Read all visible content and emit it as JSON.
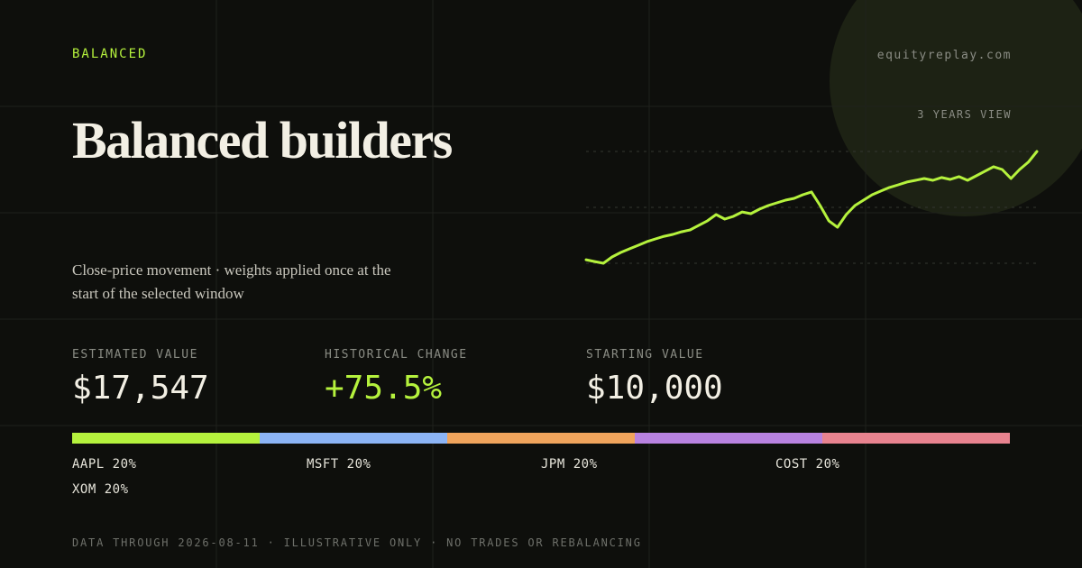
{
  "header": {
    "tag": "BALANCED",
    "site": "equityreplay.com",
    "view": "3 YEARS VIEW"
  },
  "title": "Balanced builders",
  "subtitle": "Close-price movement · weights applied once at the start of the selected window",
  "stats": [
    {
      "label": "ESTIMATED VALUE",
      "value": "$17,547"
    },
    {
      "label": "HISTORICAL CHANGE",
      "value": "+75.5%"
    },
    {
      "label": "STARTING VALUE",
      "value": "$10,000"
    }
  ],
  "sparkline": {
    "color": "#b5f23d",
    "values": [
      10120,
      10000,
      9880,
      10310,
      10620,
      10870,
      11110,
      11360,
      11550,
      11730,
      11860,
      12040,
      12170,
      12480,
      12790,
      13220,
      12910,
      13100,
      13400,
      13280,
      13590,
      13840,
      14020,
      14210,
      14330,
      14580,
      14770,
      13840,
      12790,
      12350,
      13220,
      13840,
      14210,
      14580,
      14830,
      15080,
      15260,
      15450,
      15570,
      15690,
      15570,
      15760,
      15630,
      15820,
      15570,
      15880,
      16190,
      16500,
      16310,
      15690,
      16310,
      16810,
      17547
    ]
  },
  "allocation": [
    {
      "label": "AAPL 20%",
      "weight": 20,
      "color": "#b5f23d"
    },
    {
      "label": "MSFT 20%",
      "weight": 20,
      "color": "#8cb4f5"
    },
    {
      "label": "JPM 20%",
      "weight": 20,
      "color": "#f0a45c"
    },
    {
      "label": "COST 20%",
      "weight": 20,
      "color": "#b882e0"
    },
    {
      "label": "XOM 20%",
      "weight": 20,
      "color": "#e8838f"
    }
  ],
  "footer": "DATA THROUGH 2026-08-11 · ILLUSTRATIVE ONLY · NO TRADES OR REBALANCING"
}
